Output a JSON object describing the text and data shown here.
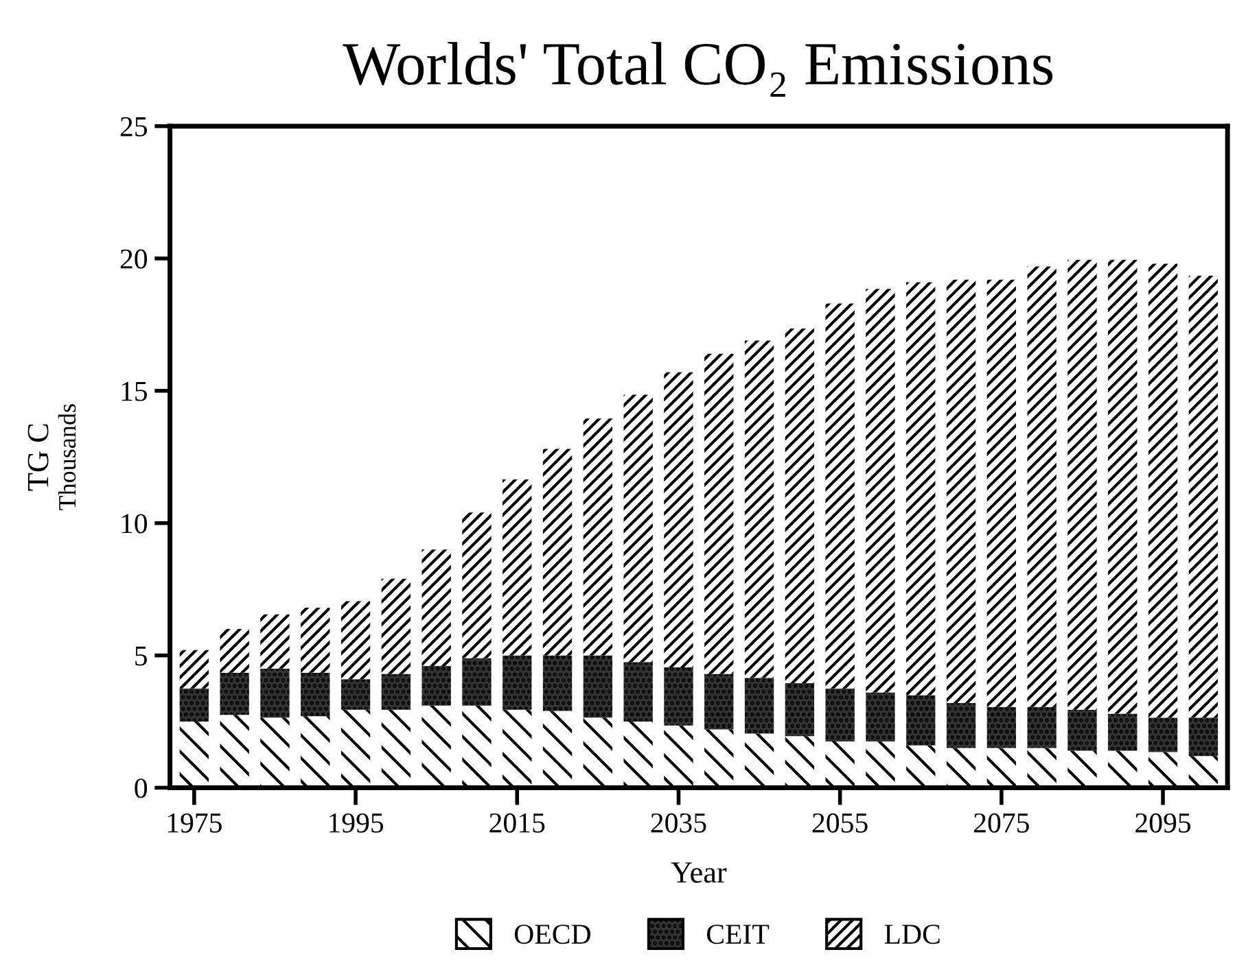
{
  "chart_data": {
    "type": "bar",
    "stacked": true,
    "title": "Worlds' Total CO₂ Emissions",
    "xlabel": "Year",
    "ylabel": "TG C",
    "annotations": [
      "Thousands"
    ],
    "categories": [
      "1975",
      null,
      null,
      null,
      "1995",
      null,
      null,
      null,
      "2015",
      null,
      null,
      null,
      "2035",
      null,
      null,
      null,
      "2055",
      null,
      null,
      null,
      "2075",
      null,
      null,
      null,
      "2095",
      null
    ],
    "series": [
      {
        "name": "OECD",
        "color": "#ffffff",
        "values": [
          2.5,
          2.75,
          2.65,
          2.7,
          2.95,
          2.95,
          3.1,
          3.1,
          2.95,
          2.9,
          2.65,
          2.5,
          2.35,
          2.2,
          2.05,
          1.95,
          1.75,
          1.75,
          1.6,
          1.5,
          1.5,
          1.5,
          1.4,
          1.4,
          1.35,
          1.2
        ]
      },
      {
        "name": "CEIT",
        "color": "#333333",
        "values": [
          1.25,
          1.6,
          1.85,
          1.65,
          1.15,
          1.35,
          1.5,
          1.8,
          2.05,
          2.1,
          2.35,
          2.25,
          2.2,
          2.1,
          2.1,
          2.0,
          2.0,
          1.85,
          1.9,
          1.7,
          1.55,
          1.55,
          1.55,
          1.4,
          1.3,
          1.45
        ]
      },
      {
        "name": "LDC",
        "color": "#ffffff",
        "values": [
          1.45,
          1.65,
          2.05,
          2.45,
          2.95,
          3.6,
          4.4,
          5.5,
          6.65,
          7.8,
          8.95,
          10.1,
          11.15,
          12.1,
          12.75,
          13.4,
          14.55,
          15.25,
          15.6,
          16.0,
          16.15,
          16.65,
          17.0,
          17.15,
          17.15,
          16.7
        ]
      }
    ],
    "ylim": [
      0,
      25
    ],
    "yticks": [
      0,
      5,
      10,
      15,
      20,
      25
    ],
    "grid": false,
    "legend": "bottom"
  }
}
